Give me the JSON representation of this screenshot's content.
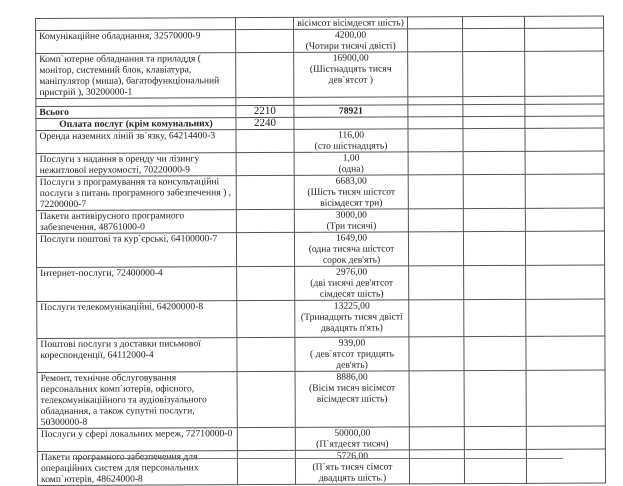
{
  "rows": [
    {
      "name": "",
      "code": "",
      "amount": "",
      "words": "вісімсот вісімдесят шість)"
    },
    {
      "name": "Комунікаційне обладнання, 32570000-9",
      "code": "",
      "amount": "4200,00",
      "words": "(Чотири тисячі двісті)"
    },
    {
      "name": "Комп`ютерне обладнання та приладдя ( монітор, системний блок, клавіатура, маніпулятор (миша), багатофункціональний пристрій ), 30200000-1",
      "code": "",
      "amount": "16900,00",
      "words": "(Шістнадцять тисяч дев`ятсот )"
    },
    {
      "name": "",
      "code": "",
      "amount": "",
      "words": ""
    },
    {
      "name": "Всього",
      "code": "2210",
      "amount": "78921",
      "words": ""
    },
    {
      "name": "Оплата послуг (крім комунальних)",
      "code": "2240",
      "amount": "",
      "words": ""
    },
    {
      "name": "Оренда наземних ліній зв`язку, 64214400-3",
      "code": "",
      "amount": "116,00",
      "words": "(сто шістнадцять)"
    },
    {
      "name": "Послуги з надання в оренду чи лізингу нежитлової нерухомості, 70220000-9",
      "code": "",
      "amount": "1,00",
      "words": "(одна)"
    },
    {
      "name": "Послуги з програмування та консультаційні послуги з питань програмного забезпечення ) , 72200000-7",
      "code": "",
      "amount": "6683,00",
      "words": "(Шість тисяч шістсот вісімдесят три)"
    },
    {
      "name": "Пакети антивірусного програмного забезпечення, 48761000-0",
      "code": "",
      "amount": "3000,00",
      "words": "(Три тисячі)"
    },
    {
      "name": "Послуги поштові та кур`єрські, 64100000-7",
      "code": "",
      "amount": "1649,00",
      "words": "(одна тисяча шістсот сорок  дев'ять)"
    },
    {
      "name": "Інтернет-послуги, 72400000-4",
      "code": "",
      "amount": "2976,00",
      "words": "(дві тисячі дев'ятсот сімдесят шість)"
    },
    {
      "name": "Послуги телекомунікаційні, 64200000-8",
      "code": "",
      "amount": "13225,00",
      "words": "(Тринадцять тисяч двісті двадцять п'ять)"
    },
    {
      "name": "Поштові послуги з доставки письмової кореспонденції, 64112000-4",
      "code": "",
      "amount": "939,00",
      "words": "( дев`ятсот тридцять дев'ять)"
    },
    {
      "name": "Ремонт, технічне обслуговування персональних комп`ютерів, офісного, телекомунікаційного та аудіовізуального обладнання, а також супутні послуги,  50300000-8",
      "code": "",
      "amount": "8886,00",
      "words": "(Вісім тисяч вісімсот вісімдесят шість)"
    },
    {
      "name": "Послуги у сфері локальних мереж, 72710000-0",
      "code": "",
      "amount": "50000,00",
      "words": "(П`ятдесят тисяч)"
    },
    {
      "name": "Пакети програмного забезпечення для операційних систем для персональних комп`ютерів, 48624000-8",
      "code": "",
      "amount": "5726,00",
      "words": "(П`ять тисяч сімсот двадцять шість.)"
    }
  ]
}
